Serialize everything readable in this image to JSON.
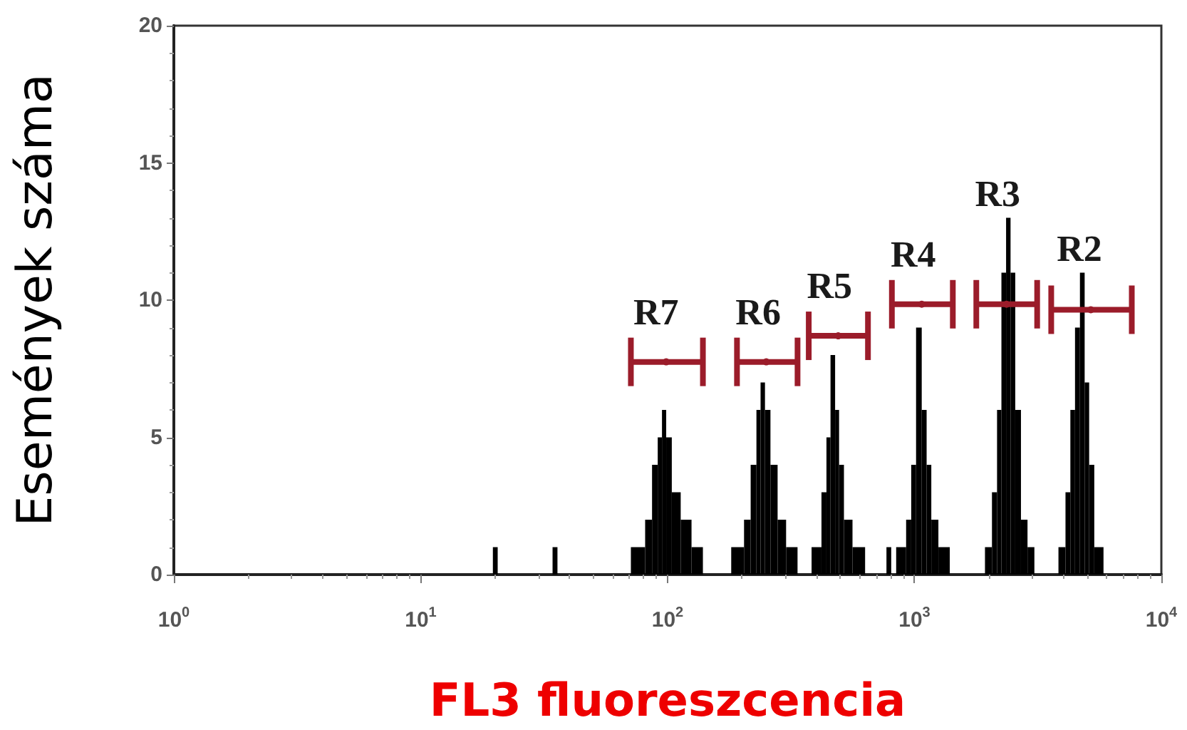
{
  "chart_data": {
    "type": "histogram",
    "xlabel": "FL3 fluoreszcencia",
    "ylabel": "Események száma",
    "log": "x",
    "xlim": [
      1,
      10000
    ],
    "xticks": [
      {
        "value": 1,
        "label": "10$^{0}$"
      },
      {
        "value": 10,
        "label": "10$^{1}$"
      },
      {
        "value": 100,
        "label": "10$^{2}$"
      },
      {
        "value": 1000,
        "label": "10$^{3}$"
      },
      {
        "value": 10000,
        "label": "10$^{4}$"
      }
    ],
    "ylim": [
      0,
      20
    ],
    "yticks": [
      0,
      5,
      10,
      15,
      20
    ],
    "series": [
      {
        "color": "#000000",
        "bins": [
          19.6,
          20.5,
          34.2,
          35.8,
          71.0,
          81.1,
          86.5,
          91.2,
          94.9,
          98.7,
          104,
          113,
          125,
          139,
          181,
          204,
          217,
          229,
          238,
          248,
          261,
          279,
          302,
          336,
          383,
          420,
          440,
          457,
          477,
          495,
          518,
          561,
          631,
          770,
          805,
          843,
          925,
          970,
          1015,
          1070,
          1120,
          1170,
          1250,
          1390,
          1930,
          2060,
          2160,
          2250,
          2350,
          2450,
          2560,
          2700,
          2870,
          3060,
          3830,
          4090,
          4280,
          4470,
          4680,
          4890,
          5100,
          5350,
          5830
        ],
        "values": [
          1,
          0,
          1,
          0,
          1,
          2,
          4,
          5,
          6,
          5,
          3,
          2,
          1,
          0,
          1,
          2,
          4,
          6,
          7,
          6,
          4,
          2,
          1,
          0,
          1,
          3,
          5,
          8,
          6,
          4,
          2,
          1,
          0,
          1,
          0,
          1,
          2,
          4,
          9,
          6,
          4,
          2,
          1,
          0,
          1,
          3,
          6,
          11,
          13,
          11,
          6,
          2,
          1,
          0,
          1,
          3,
          6,
          9,
          11,
          7,
          4,
          1
        ]
      },
      {
        "type": "scatter",
        "name": "R7",
        "color": "#9b1c2a",
        "x": [
          98.7
        ],
        "values": [
          7.75
        ],
        "xerrors": [
          [
            71.0,
            139
          ]
        ]
      },
      {
        "type": "scatter",
        "name": "R6",
        "color": "#9b1c2a",
        "x": [
          251
        ],
        "values": [
          7.75
        ],
        "xerrors": [
          [
            191,
            336
          ]
        ]
      },
      {
        "type": "scatter",
        "name": "R5",
        "color": "#9b1c2a",
        "x": [
          491
        ],
        "values": [
          8.7
        ],
        "xerrors": [
          [
            373,
            648
          ]
        ]
      },
      {
        "type": "scatter",
        "name": "R4",
        "color": "#9b1c2a",
        "x": [
          1070
        ],
        "values": [
          9.85
        ],
        "xerrors": [
          [
            810,
            1430
          ]
        ]
      },
      {
        "type": "scatter",
        "name": "R3",
        "color": "#9b1c2a",
        "x": [
          2360
        ],
        "values": [
          9.85
        ],
        "xerrors": [
          [
            1780,
            3140
          ]
        ]
      },
      {
        "type": "scatter",
        "name": "R2",
        "color": "#9b1c2a",
        "x": [
          5180
        ],
        "values": [
          9.65
        ],
        "xerrors": [
          [
            3580,
            7590
          ]
        ]
      }
    ]
  }
}
